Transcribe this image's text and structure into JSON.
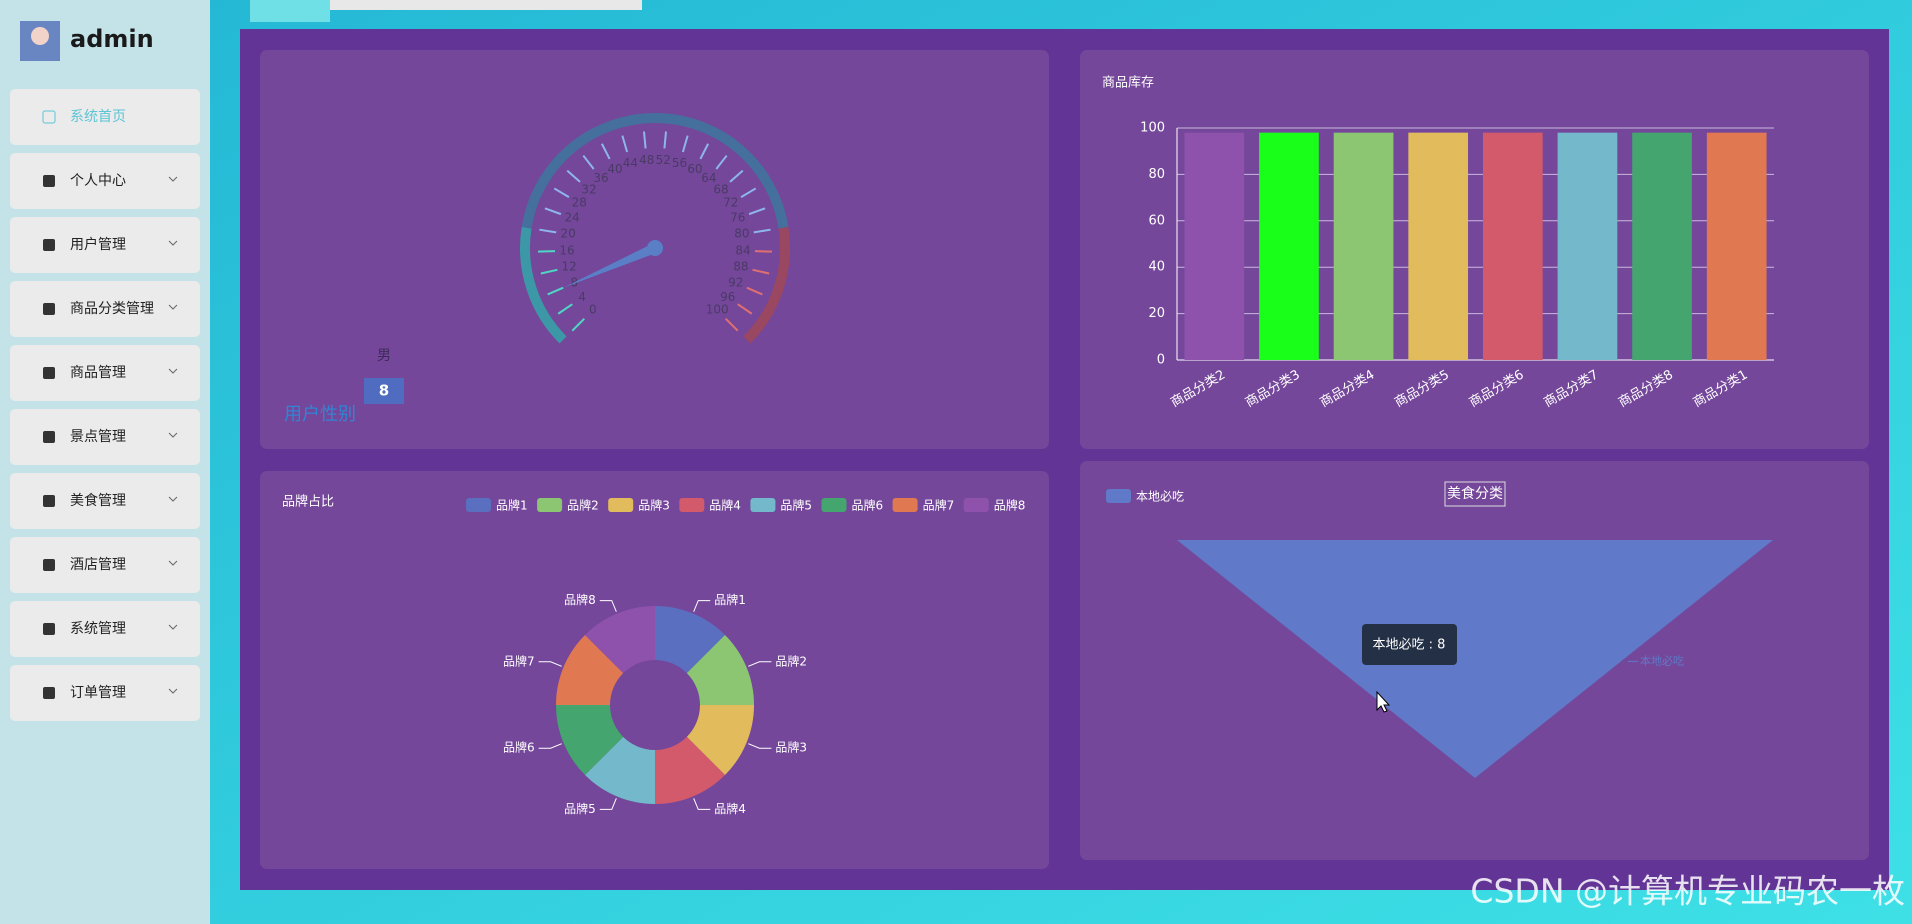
{
  "sidebar": {
    "user": "admin",
    "menu": [
      "系统首页",
      "个人中心",
      "用户管理",
      "商品分类管理",
      "商品管理",
      "景点管理",
      "美食管理",
      "酒店管理",
      "系统管理",
      "订单管理"
    ]
  },
  "watermark": "CSDN @计算机专业码农一枚",
  "chart_data": [
    {
      "type": "gauge",
      "title": "用户性别",
      "categories": [
        "男"
      ],
      "values": [
        8
      ],
      "ylim": [
        0,
        100
      ],
      "yticks": [
        0,
        4,
        8,
        12,
        16,
        20,
        24,
        28,
        32,
        36,
        40,
        44,
        48,
        52,
        56,
        60,
        64,
        68,
        72,
        76,
        80,
        84,
        88,
        92,
        96,
        100
      ]
    },
    {
      "type": "bar",
      "title": "商品库存",
      "categories": [
        "商品分类2",
        "商品分类3",
        "商品分类4",
        "商品分类5",
        "商品分类6",
        "商品分类7",
        "商品分类8",
        "商品分类1"
      ],
      "values": [
        98,
        98,
        98,
        98,
        98,
        98,
        98,
        98
      ],
      "colors": [
        "#8e52ad",
        "#1aff1a",
        "#8dc673",
        "#e2bc5c",
        "#d35a6a",
        "#74b8cc",
        "#44a56f",
        "#e07952"
      ],
      "ylim": [
        0,
        100
      ],
      "yticks": [
        0,
        20,
        40,
        60,
        80,
        100
      ],
      "grid": true
    },
    {
      "type": "pie",
      "title": "品牌占比",
      "categories": [
        "品牌1",
        "品牌2",
        "品牌3",
        "品牌4",
        "品牌5",
        "品牌6",
        "品牌7",
        "品牌8"
      ],
      "values": [
        1,
        1,
        1,
        1,
        1,
        1,
        1,
        1
      ],
      "colors": [
        "#5b6fc0",
        "#8dc673",
        "#e2bc5c",
        "#d35a6a",
        "#74b8cc",
        "#44a56f",
        "#e07952",
        "#8e52ad"
      ],
      "legend": "top-right"
    },
    {
      "type": "funnel",
      "title": "美食分类",
      "categories": [
        "本地必吃"
      ],
      "values": [
        8
      ],
      "colors": [
        "#6079c8"
      ],
      "tooltip": "本地必吃 : 8",
      "legend": "top-left"
    }
  ]
}
